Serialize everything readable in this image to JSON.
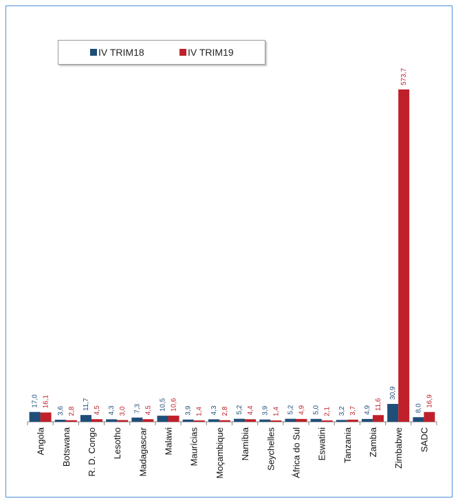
{
  "chart_data": {
    "type": "bar",
    "categories": [
      "Angola",
      "Botswana",
      "R. D. Congo",
      "Lesotho",
      "Madagascar",
      "Malawi",
      "Maurícias",
      "Moçambique",
      "Namíbia",
      "Seychelles",
      "África do Sul",
      "Eswatini",
      "Tanzania",
      "Zambia",
      "Zimbabwe",
      "SADC"
    ],
    "series": [
      {
        "name": "IV TRIM18",
        "color": "#1f4e79",
        "values": [
          17.0,
          3.6,
          11.7,
          4.3,
          7.3,
          10.5,
          3.9,
          4.3,
          5.2,
          3.9,
          5.2,
          5.0,
          3.2,
          4.9,
          30.9,
          8.0
        ],
        "labels": [
          "17,0",
          "3,6",
          "11,7",
          "4,3",
          "7,3",
          "10,5",
          "3,9",
          "4,3",
          "5,2",
          "3,9",
          "5,2",
          "5,0",
          "3,2",
          "4,9",
          "30,9",
          "8,0"
        ]
      },
      {
        "name": "IV TRIM19",
        "color": "#c0202a",
        "values": [
          16.1,
          2.8,
          4.5,
          3.0,
          4.5,
          10.6,
          1.4,
          2.8,
          4.4,
          1.4,
          4.9,
          2.1,
          3.7,
          11.6,
          573.7,
          16.9
        ],
        "labels": [
          "16,1",
          "2,8",
          "4,5",
          "3,0",
          "4,5",
          "10,6",
          "1,4",
          "2,8",
          "4,4",
          "1,4",
          "4,9",
          "2,1",
          "3,7",
          "11,6",
          "573,7",
          "16,9"
        ]
      }
    ],
    "ylim": [
      0,
      600
    ],
    "legend": "top-left",
    "grid": false
  }
}
